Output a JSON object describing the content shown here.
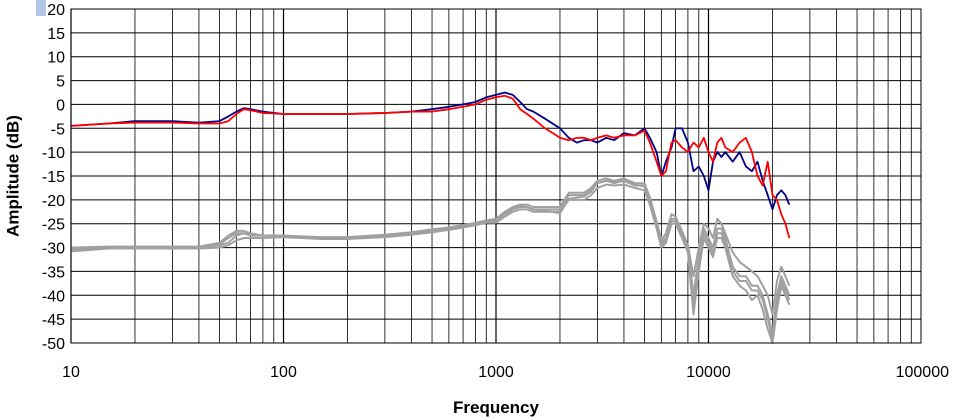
{
  "chart_data": {
    "type": "line",
    "title": "",
    "xlabel": "Frequency",
    "ylabel": "Amplitude (dB)",
    "x_scale": "log",
    "xlim": [
      10,
      100000
    ],
    "ylim": [
      -50,
      20
    ],
    "y_major_step": 5,
    "grid": true,
    "legend": "none",
    "x_tick_labels": [
      "10",
      "100",
      "1000",
      "10000",
      "100000"
    ],
    "y_tick_labels": [
      "20",
      "15",
      "10",
      "5",
      "0",
      "-5",
      "-10",
      "-15",
      "-20",
      "-25",
      "-30",
      "-35",
      "-40",
      "-45",
      "-50"
    ],
    "colors": {
      "blue": "#00008b",
      "red": "#ff0000",
      "gray": "#a0a0a0",
      "grid": "#000000"
    },
    "series": [
      {
        "color": "#00008b",
        "x": [
          10,
          15,
          20,
          30,
          40,
          50,
          55,
          60,
          65,
          70,
          80,
          100,
          150,
          200,
          300,
          400,
          500,
          600,
          700,
          800,
          900,
          1000,
          1100,
          1200,
          1300,
          1400,
          1500,
          1700,
          2000,
          2200,
          2400,
          2600,
          2800,
          3000,
          3300,
          3600,
          4000,
          4500,
          5000,
          5300,
          5700,
          6000,
          6300,
          6700,
          7000,
          7500,
          8000,
          8500,
          9000,
          9500,
          10000,
          10500,
          11000,
          11500,
          12000,
          13000,
          14000,
          15000,
          16000,
          17000,
          18000,
          19000,
          20000,
          21000,
          22000,
          23000,
          24000
        ],
        "y": [
          -4.5,
          -4,
          -3.5,
          -3.5,
          -3.8,
          -3.5,
          -2.5,
          -1.5,
          -0.8,
          -1,
          -1.5,
          -2,
          -2,
          -2,
          -1.8,
          -1.5,
          -1,
          -0.5,
          0,
          0.5,
          1.5,
          2,
          2.5,
          2,
          0.5,
          -1,
          -1.5,
          -3,
          -5,
          -7,
          -8,
          -7.5,
          -7.5,
          -8,
          -7,
          -7.5,
          -6,
          -6.5,
          -5,
          -7,
          -10,
          -15,
          -12,
          -9,
          -5,
          -5,
          -8,
          -14,
          -13,
          -15,
          -18,
          -12,
          -10,
          -11,
          -10,
          -12,
          -10,
          -13,
          -14,
          -12,
          -16,
          -19,
          -22,
          -19,
          -18,
          -19,
          -21
        ]
      },
      {
        "color": "#ff0000",
        "x": [
          10,
          15,
          20,
          30,
          40,
          50,
          55,
          60,
          65,
          70,
          80,
          100,
          150,
          200,
          300,
          400,
          500,
          600,
          700,
          800,
          900,
          1000,
          1100,
          1200,
          1300,
          1400,
          1500,
          1700,
          2000,
          2200,
          2400,
          2600,
          2800,
          3000,
          3300,
          3600,
          4000,
          4500,
          5000,
          5300,
          5700,
          6000,
          6300,
          6700,
          7000,
          7500,
          8000,
          8500,
          9000,
          9500,
          10000,
          10500,
          11000,
          11500,
          12000,
          13000,
          14000,
          15000,
          16000,
          17000,
          18000,
          19000,
          20000,
          21000,
          22000,
          23000,
          24000
        ],
        "y": [
          -4.5,
          -4,
          -3.8,
          -3.8,
          -4,
          -4,
          -3.5,
          -2,
          -1,
          -1.2,
          -1.8,
          -2,
          -2,
          -2,
          -1.8,
          -1.5,
          -1.5,
          -1,
          -0.5,
          0,
          1,
          1.5,
          1.8,
          1.2,
          -1,
          -2,
          -3,
          -5,
          -7,
          -7.5,
          -7,
          -7,
          -7.5,
          -7,
          -6.5,
          -7,
          -6.5,
          -6.5,
          -5.5,
          -8,
          -12,
          -15,
          -14,
          -8,
          -7.5,
          -9,
          -10,
          -8,
          -9,
          -7,
          -10,
          -12,
          -8,
          -7,
          -9,
          -10,
          -8,
          -7,
          -10,
          -15,
          -17,
          -12,
          -19,
          -20,
          -23,
          -25,
          -28
        ]
      },
      {
        "color": "#a0a0a0",
        "x": [
          10,
          15,
          20,
          30,
          40,
          50,
          55,
          60,
          65,
          70,
          80,
          100,
          150,
          200,
          300,
          400,
          500,
          600,
          700,
          800,
          900,
          1000,
          1100,
          1200,
          1300,
          1400,
          1500,
          1700,
          2000,
          2200,
          2400,
          2600,
          2800,
          3000,
          3300,
          3600,
          4000,
          4500,
          5000,
          5300,
          5700,
          6000,
          6300,
          6700,
          7000,
          7500,
          8000,
          8500,
          9000,
          9500,
          10000,
          10500,
          11000,
          11500,
          12000,
          13000,
          14000,
          15000,
          16000,
          17000,
          18000,
          19000,
          20000,
          21000,
          22000,
          23000,
          24000
        ],
        "y": [
          -30.5,
          -30,
          -30,
          -30,
          -30,
          -29.5,
          -29,
          -27.5,
          -27,
          -27.5,
          -27.5,
          -27.5,
          -28,
          -28,
          -27.5,
          -27,
          -26.5,
          -26,
          -25.5,
          -25,
          -24.5,
          -24.5,
          -23,
          -22,
          -21.5,
          -21.5,
          -22,
          -22,
          -22,
          -19,
          -19,
          -19,
          -18,
          -16.5,
          -16,
          -16.5,
          -16,
          -17,
          -17,
          -20,
          -25,
          -29,
          -28,
          -24,
          -24,
          -27,
          -30,
          -40,
          -32,
          -26,
          -28,
          -30,
          -26,
          -26,
          -28,
          -34,
          -36,
          -36,
          -38,
          -38,
          -40,
          -44,
          -48,
          -40,
          -36,
          -38,
          -40
        ]
      },
      {
        "color": "#a0a0a0",
        "x": [
          10,
          15,
          20,
          30,
          40,
          50,
          55,
          60,
          65,
          70,
          80,
          100,
          150,
          200,
          300,
          400,
          500,
          600,
          700,
          800,
          900,
          1000,
          1100,
          1200,
          1300,
          1400,
          1500,
          1700,
          2000,
          2200,
          2400,
          2600,
          2800,
          3000,
          3300,
          3600,
          4000,
          4500,
          5000,
          5300,
          5700,
          6000,
          6300,
          6700,
          7000,
          7500,
          8000,
          8500,
          9000,
          9500,
          10000,
          10500,
          11000,
          11500,
          12000,
          13000,
          14000,
          15000,
          16000,
          17000,
          18000,
          19000,
          20000,
          21000,
          22000,
          23000,
          24000
        ],
        "y": [
          -30,
          -29.8,
          -29.8,
          -29.8,
          -29.8,
          -29,
          -27.5,
          -26.5,
          -26.5,
          -27,
          -27.5,
          -27.5,
          -27.8,
          -27.8,
          -27.3,
          -26.8,
          -26.2,
          -25.8,
          -25.3,
          -24.8,
          -24.3,
          -24,
          -22.5,
          -21.5,
          -21,
          -21,
          -21.5,
          -21.5,
          -21.5,
          -18.5,
          -18.5,
          -18.5,
          -17.5,
          -16,
          -15.5,
          -16,
          -15.5,
          -16.5,
          -16.5,
          -19.5,
          -24.5,
          -28.5,
          -27,
          -23,
          -23.5,
          -26.5,
          -29.5,
          -36,
          -30,
          -25,
          -26,
          -28,
          -24,
          -25,
          -27,
          -31,
          -33,
          -34,
          -35,
          -36,
          -38,
          -40,
          -44,
          -37,
          -34,
          -36,
          -38
        ]
      },
      {
        "color": "#a0a0a0",
        "x": [
          10,
          15,
          20,
          30,
          40,
          50,
          55,
          60,
          65,
          70,
          80,
          100,
          150,
          200,
          300,
          400,
          500,
          600,
          700,
          800,
          900,
          1000,
          1100,
          1200,
          1300,
          1400,
          1500,
          1700,
          2000,
          2200,
          2400,
          2600,
          2800,
          3000,
          3300,
          3600,
          4000,
          4500,
          5000,
          5300,
          5700,
          6000,
          6300,
          6700,
          7000,
          7500,
          8000,
          8500,
          9000,
          9500,
          10000,
          10500,
          11000,
          11500,
          12000,
          13000,
          14000,
          15000,
          16000,
          17000,
          18000,
          19000,
          20000,
          21000,
          22000,
          23000,
          24000
        ],
        "y": [
          -30.8,
          -30.2,
          -30.2,
          -30.2,
          -30.2,
          -30,
          -29.5,
          -28.5,
          -28,
          -28,
          -28,
          -27.8,
          -28.2,
          -28.2,
          -27.8,
          -27.3,
          -26.8,
          -26.3,
          -25.8,
          -25.3,
          -24.8,
          -24.8,
          -23.5,
          -22.5,
          -22,
          -22,
          -22.5,
          -22.5,
          -22.5,
          -20,
          -20,
          -20,
          -19,
          -17.5,
          -16.8,
          -17,
          -16.8,
          -17.5,
          -18,
          -21,
          -26,
          -30,
          -29,
          -25,
          -25,
          -28,
          -31,
          -44,
          -35,
          -28,
          -30,
          -32,
          -28,
          -28,
          -30,
          -36,
          -38,
          -39,
          -41,
          -40,
          -43,
          -47,
          -50,
          -43,
          -38,
          -40,
          -42
        ]
      },
      {
        "color": "#a0a0a0",
        "x": [
          10,
          15,
          20,
          30,
          40,
          50,
          55,
          60,
          65,
          70,
          80,
          100,
          150,
          200,
          300,
          400,
          500,
          600,
          700,
          800,
          900,
          1000,
          1100,
          1200,
          1300,
          1400,
          1500,
          1700,
          2000,
          2200,
          2400,
          2600,
          2800,
          3000,
          3300,
          3600,
          4000,
          4500,
          5000,
          5300,
          5700,
          6000,
          6300,
          6700,
          7000,
          7500,
          8000,
          8500,
          9000,
          9500,
          10000,
          10500,
          11000,
          11500,
          12000,
          13000,
          14000,
          15000,
          16000,
          17000,
          18000,
          19000,
          20000,
          21000,
          22000,
          23000,
          24000
        ],
        "y": [
          -30.3,
          -29.9,
          -29.9,
          -29.9,
          -30,
          -29.3,
          -28,
          -27,
          -27,
          -27.3,
          -27.5,
          -27.5,
          -27.9,
          -27.9,
          -27.4,
          -26.9,
          -26.4,
          -26,
          -25.5,
          -25,
          -24.5,
          -24.3,
          -22.8,
          -21.8,
          -21.3,
          -21.5,
          -22,
          -22.3,
          -22.8,
          -19.8,
          -19.5,
          -19.3,
          -18.3,
          -16.5,
          -16,
          -16.2,
          -15.8,
          -16.8,
          -17.2,
          -20.5,
          -25.5,
          -29.5,
          -28.5,
          -24.5,
          -24.5,
          -27.5,
          -30.5,
          -42,
          -33,
          -27,
          -29,
          -31,
          -27,
          -27,
          -29,
          -35,
          -37,
          -37,
          -39,
          -39,
          -41,
          -45,
          -49,
          -41,
          -37,
          -39,
          -41
        ]
      }
    ]
  }
}
